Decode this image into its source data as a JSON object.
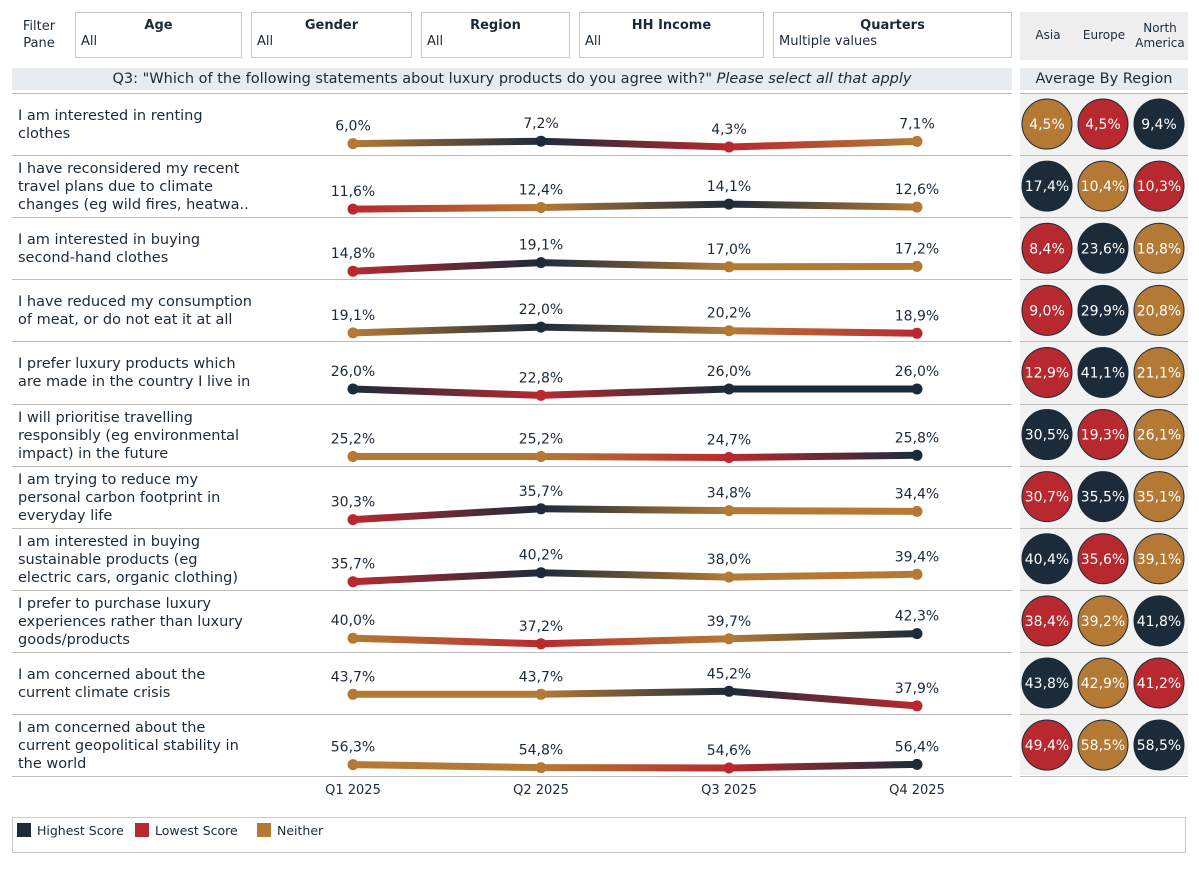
{
  "filter_pane_label": "Filter Pane",
  "filters": [
    {
      "title": "Age",
      "value": "All"
    },
    {
      "title": "Gender",
      "value": "All"
    },
    {
      "title": "Region",
      "value": "All"
    },
    {
      "title": "HH Income",
      "value": "All"
    },
    {
      "title": "Quarters",
      "value": "Multiple values"
    }
  ],
  "region_headers": [
    "Asia",
    "Europe",
    "North America"
  ],
  "avg_title": "Average By Region",
  "question_main": "Q3: \"Which of the following statements about luxury products do you agree with?\"",
  "question_italic": "Please select all that apply",
  "legend": [
    {
      "label": "Highest Score",
      "color": "#1c2b3a"
    },
    {
      "label": "Lowest Score",
      "color": "#b8292f"
    },
    {
      "label": "Neither",
      "color": "#b47a35"
    }
  ],
  "colors": {
    "highest": "#1c2b3a",
    "lowest": "#b8292f",
    "neither": "#b47a35"
  },
  "chart_data": {
    "type": "line",
    "categories": [
      "Q1 2025",
      "Q2 2025",
      "Q3 2025",
      "Q4 2025"
    ],
    "series": [
      {
        "name": "I am interested in renting clothes",
        "values": [
          6.0,
          7.2,
          4.3,
          7.1
        ],
        "labels": [
          "6,0%",
          "7,2%",
          "4,3%",
          "7,1%"
        ]
      },
      {
        "name": "I have reconsidered my recent travel plans due to climate changes (eg wild fires, heatwa..",
        "values": [
          11.6,
          12.4,
          14.1,
          12.6
        ],
        "labels": [
          "11,6%",
          "12,4%",
          "14,1%",
          "12,6%"
        ]
      },
      {
        "name": "I am interested in buying second-hand clothes",
        "values": [
          14.8,
          19.1,
          17.0,
          17.2
        ],
        "labels": [
          "14,8%",
          "19,1%",
          "17,0%",
          "17,2%"
        ]
      },
      {
        "name": "I have reduced my consumption of meat, or do not eat it at all",
        "values": [
          19.1,
          22.0,
          20.2,
          18.9
        ],
        "labels": [
          "19,1%",
          "22,0%",
          "20,2%",
          "18,9%"
        ]
      },
      {
        "name": "I prefer luxury products which are made in the country I live in",
        "values": [
          26.0,
          22.8,
          26.0,
          26.0
        ],
        "labels": [
          "26,0%",
          "22,8%",
          "26,0%",
          "26,0%"
        ]
      },
      {
        "name": "I will prioritise travelling responsibly (eg environmental impact) in the future",
        "values": [
          25.2,
          25.2,
          24.7,
          25.8
        ],
        "labels": [
          "25,2%",
          "25,2%",
          "24,7%",
          "25,8%"
        ]
      },
      {
        "name": "I am trying to reduce my personal carbon footprint in everyday life",
        "values": [
          30.3,
          35.7,
          34.8,
          34.4
        ],
        "labels": [
          "30,3%",
          "35,7%",
          "34,8%",
          "34,4%"
        ]
      },
      {
        "name": "I am interested in buying sustainable products (eg electric cars, organic clothing)",
        "values": [
          35.7,
          40.2,
          38.0,
          39.4
        ],
        "labels": [
          "35,7%",
          "40,2%",
          "38,0%",
          "39,4%"
        ]
      },
      {
        "name": "I prefer to purchase luxury experiences rather than luxury goods/products",
        "values": [
          40.0,
          37.2,
          39.7,
          42.3
        ],
        "labels": [
          "40,0%",
          "37,2%",
          "39,7%",
          "42,3%"
        ]
      },
      {
        "name": "I am concerned about the current climate crisis",
        "values": [
          43.7,
          43.7,
          45.2,
          37.9
        ],
        "labels": [
          "43,7%",
          "43,7%",
          "45,2%",
          "37,9%"
        ]
      },
      {
        "name": "I am concerned about the current geopolitical stability in the world",
        "values": [
          56.3,
          54.8,
          54.6,
          56.4
        ],
        "labels": [
          "56,3%",
          "54,8%",
          "54,6%",
          "56,4%"
        ]
      }
    ],
    "row_labels": [
      [
        "I am interested in renting",
        "clothes"
      ],
      [
        "I have reconsidered my recent",
        "travel plans due to climate",
        "changes (eg wild fires, heatwa.."
      ],
      [
        "I am interested in buying",
        "second-hand clothes"
      ],
      [
        "I have reduced my consumption",
        "of meat, or do not eat it at all"
      ],
      [
        "I prefer luxury products which",
        "are made in the country I live in"
      ],
      [
        "I will prioritise travelling",
        "responsibly (eg environmental",
        "impact) in the future"
      ],
      [
        "I am trying to reduce my",
        "personal carbon footprint in",
        "everyday life"
      ],
      [
        "I am interested in buying",
        "sustainable products (eg",
        "electric cars, organic clothing)"
      ],
      [
        "I prefer to purchase luxury",
        "experiences rather than luxury",
        "goods/products"
      ],
      [
        "I am concerned about the",
        "current climate crisis"
      ],
      [
        "I am concerned about the",
        "current geopolitical stability in",
        "the world"
      ]
    ],
    "region_averages": [
      {
        "values": [
          "4,5%",
          "4,5%",
          "9,4%"
        ],
        "status": [
          "neither",
          "lowest",
          "highest"
        ]
      },
      {
        "values": [
          "17,4%",
          "10,4%",
          "10,3%"
        ],
        "status": [
          "highest",
          "neither",
          "lowest"
        ]
      },
      {
        "values": [
          "8,4%",
          "23,6%",
          "18,8%"
        ],
        "status": [
          "lowest",
          "highest",
          "neither"
        ]
      },
      {
        "values": [
          "9,0%",
          "29,9%",
          "20,8%"
        ],
        "status": [
          "lowest",
          "highest",
          "neither"
        ]
      },
      {
        "values": [
          "12,9%",
          "41,1%",
          "21,1%"
        ],
        "status": [
          "lowest",
          "highest",
          "neither"
        ]
      },
      {
        "values": [
          "30,5%",
          "19,3%",
          "26,1%"
        ],
        "status": [
          "highest",
          "lowest",
          "neither"
        ]
      },
      {
        "values": [
          "30,7%",
          "35,5%",
          "35,1%"
        ],
        "status": [
          "lowest",
          "highest",
          "neither"
        ]
      },
      {
        "values": [
          "40,4%",
          "35,6%",
          "39,1%"
        ],
        "status": [
          "highest",
          "lowest",
          "neither"
        ]
      },
      {
        "values": [
          "38,4%",
          "39,2%",
          "41,8%"
        ],
        "status": [
          "lowest",
          "neither",
          "highest"
        ]
      },
      {
        "values": [
          "43,8%",
          "42,9%",
          "41,2%"
        ],
        "status": [
          "highest",
          "neither",
          "lowest"
        ]
      },
      {
        "values": [
          "49,4%",
          "58,5%",
          "58,5%"
        ],
        "status": [
          "lowest",
          "neither",
          "highest"
        ]
      }
    ]
  }
}
